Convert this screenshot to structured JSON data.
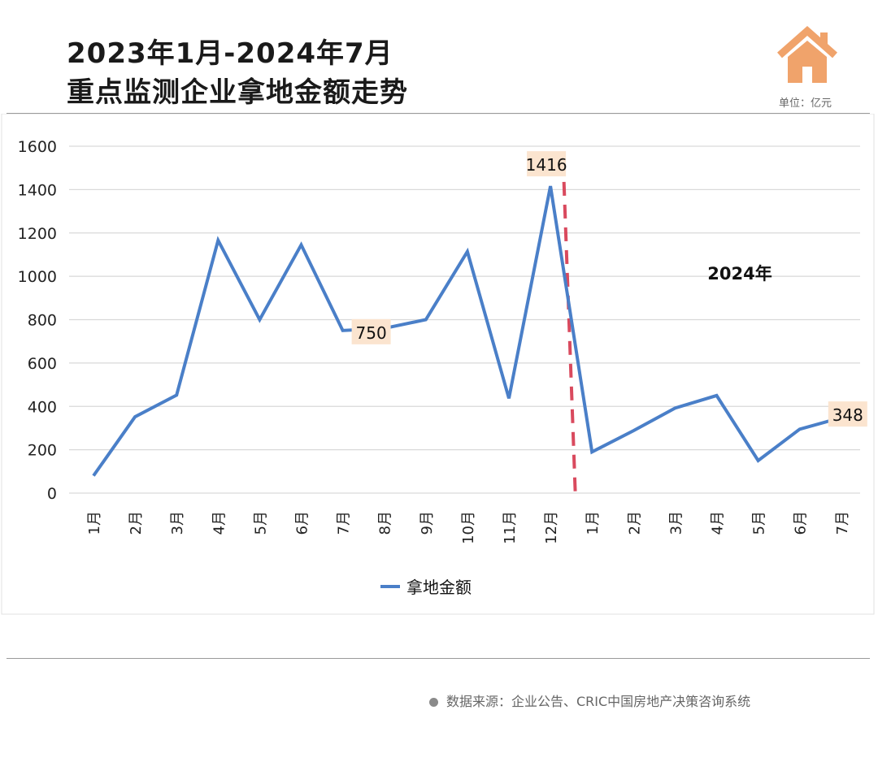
{
  "header": {
    "title_line1": "2023年1月-2024年7月",
    "title_line2": "重点监测企业拿地金额走势",
    "unit": "单位：亿元"
  },
  "source": "数据来源：企业公告、CRIC中国房地产决策咨询系统",
  "colors": {
    "line": "#4a7fc8",
    "divider": "#d94a5e",
    "label_bg": "#fbe4cf",
    "house": "#f0a36b"
  },
  "chart_data": {
    "type": "line",
    "title": "2023年1月-2024年7月 重点监测企业拿地金额走势",
    "ylabel": "亿元",
    "ylim": [
      0,
      1600
    ],
    "yticks": [
      0,
      200,
      400,
      600,
      800,
      1000,
      1200,
      1400,
      1600
    ],
    "categories": [
      "1月",
      "2月",
      "3月",
      "4月",
      "5月",
      "6月",
      "7月",
      "8月",
      "9月",
      "10月",
      "11月",
      "12月",
      "1月",
      "2月",
      "3月",
      "4月",
      "5月",
      "6月",
      "7月"
    ],
    "series": [
      {
        "name": "拿地金额",
        "values": [
          80,
          352,
          452,
          1166,
          800,
          1145,
          750,
          760,
          800,
          1114,
          437,
          1416,
          190,
          288,
          392,
          450,
          150,
          295,
          348
        ]
      }
    ],
    "data_labels": [
      {
        "index": 6,
        "text": "750"
      },
      {
        "index": 11,
        "text": "1416"
      },
      {
        "index": 18,
        "text": "348"
      }
    ],
    "annotation": {
      "text": "2024年",
      "divider_after_index": 11.5
    },
    "legend": "bottom-center",
    "grid": true
  }
}
